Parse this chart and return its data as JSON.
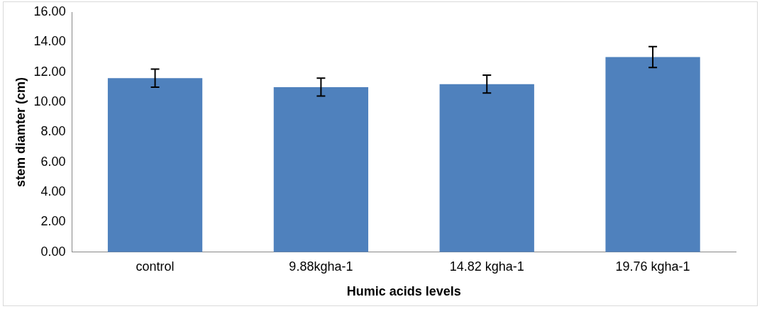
{
  "chart_data": {
    "type": "bar",
    "xlabel": "Humic acids levels",
    "ylabel": "stem diamter (cm)",
    "categories": [
      "control",
      "9.88kgha-1",
      "14.82 kgha-1",
      "19.76 kgha-1"
    ],
    "values": [
      11.6,
      11.0,
      11.2,
      13.0
    ],
    "errors": [
      0.6,
      0.6,
      0.6,
      0.7
    ],
    "color": "#4f81bd",
    "ylim": [
      0,
      16
    ],
    "yticks": [
      {
        "value": 0,
        "label": "0.00"
      },
      {
        "value": 2,
        "label": "2.00"
      },
      {
        "value": 4,
        "label": "4.00"
      },
      {
        "value": 6,
        "label": "6.00"
      },
      {
        "value": 8,
        "label": "8.00"
      },
      {
        "value": 10,
        "label": "10.00"
      },
      {
        "value": 12,
        "label": "12.00"
      },
      {
        "value": 14,
        "label": "14.00"
      },
      {
        "value": 16,
        "label": "16.00"
      }
    ],
    "grid": false,
    "legend": false
  }
}
